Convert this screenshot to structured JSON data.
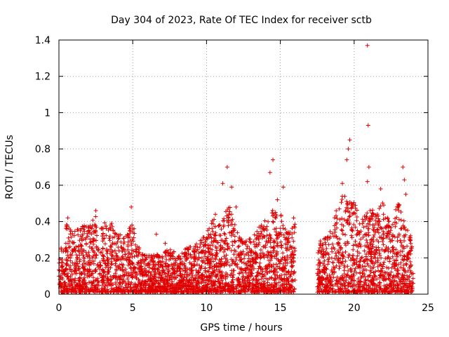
{
  "chart_data": {
    "type": "scatter",
    "title": "Day 304 of 2023, Rate Of TEC Index for receiver sctb",
    "xlabel": "GPS time / hours",
    "ylabel": "ROTI / TECUs",
    "xlim": [
      0,
      25
    ],
    "ylim": [
      0,
      1.4
    ],
    "x_ticks": [
      "0",
      "5",
      "10",
      "15",
      "20",
      "25"
    ],
    "y_ticks": [
      "0",
      "0.2",
      "0.4",
      "0.6",
      "0.8",
      "1",
      "1.2",
      "1.4"
    ],
    "grid": true,
    "marker": "plus",
    "color": "#e00000",
    "envelope": {
      "description_hours": "sampled peak envelope of point cloud",
      "x": [
        0,
        0.5,
        1,
        1.5,
        2,
        2.5,
        3,
        3.5,
        4,
        4.5,
        5,
        5.5,
        6,
        6.5,
        7,
        7.5,
        8,
        8.5,
        9,
        9.5,
        10,
        10.5,
        11,
        11.5,
        12,
        12.5,
        13,
        13.5,
        14,
        14.5,
        15,
        15.5,
        16,
        17.5,
        18,
        18.5,
        19,
        19.5,
        20,
        20.5,
        21,
        21.5,
        22,
        22.5,
        23,
        23.5,
        24
      ],
      "y": [
        0.2,
        0.38,
        0.33,
        0.37,
        0.38,
        0.43,
        0.38,
        0.41,
        0.33,
        0.3,
        0.4,
        0.23,
        0.2,
        0.22,
        0.22,
        0.24,
        0.22,
        0.24,
        0.26,
        0.28,
        0.34,
        0.42,
        0.38,
        0.5,
        0.35,
        0.28,
        0.3,
        0.36,
        0.4,
        0.46,
        0.44,
        0.35,
        0.4,
        0.28,
        0.3,
        0.36,
        0.52,
        0.55,
        0.5,
        0.42,
        0.48,
        0.45,
        0.5,
        0.38,
        0.5,
        0.36,
        0.3
      ]
    },
    "gaps_hours": [
      [
        16.0,
        17.5
      ]
    ],
    "outliers": [
      {
        "x": 0.6,
        "y": 0.42
      },
      {
        "x": 2.5,
        "y": 0.46
      },
      {
        "x": 4.9,
        "y": 0.48
      },
      {
        "x": 6.6,
        "y": 0.33
      },
      {
        "x": 7.2,
        "y": 0.28
      },
      {
        "x": 10.6,
        "y": 0.44
      },
      {
        "x": 11.1,
        "y": 0.61
      },
      {
        "x": 11.4,
        "y": 0.7
      },
      {
        "x": 11.7,
        "y": 0.59
      },
      {
        "x": 12.0,
        "y": 0.48
      },
      {
        "x": 14.3,
        "y": 0.67
      },
      {
        "x": 14.5,
        "y": 0.74
      },
      {
        "x": 14.8,
        "y": 0.52
      },
      {
        "x": 15.2,
        "y": 0.59
      },
      {
        "x": 15.9,
        "y": 0.42
      },
      {
        "x": 19.2,
        "y": 0.61
      },
      {
        "x": 19.7,
        "y": 0.85
      },
      {
        "x": 19.6,
        "y": 0.8
      },
      {
        "x": 19.5,
        "y": 0.74
      },
      {
        "x": 20.9,
        "y": 1.37
      },
      {
        "x": 20.95,
        "y": 0.93
      },
      {
        "x": 21.0,
        "y": 0.7
      },
      {
        "x": 20.9,
        "y": 0.62
      },
      {
        "x": 21.8,
        "y": 0.58
      },
      {
        "x": 23.3,
        "y": 0.7
      },
      {
        "x": 23.4,
        "y": 0.63
      },
      {
        "x": 23.5,
        "y": 0.55
      }
    ]
  }
}
